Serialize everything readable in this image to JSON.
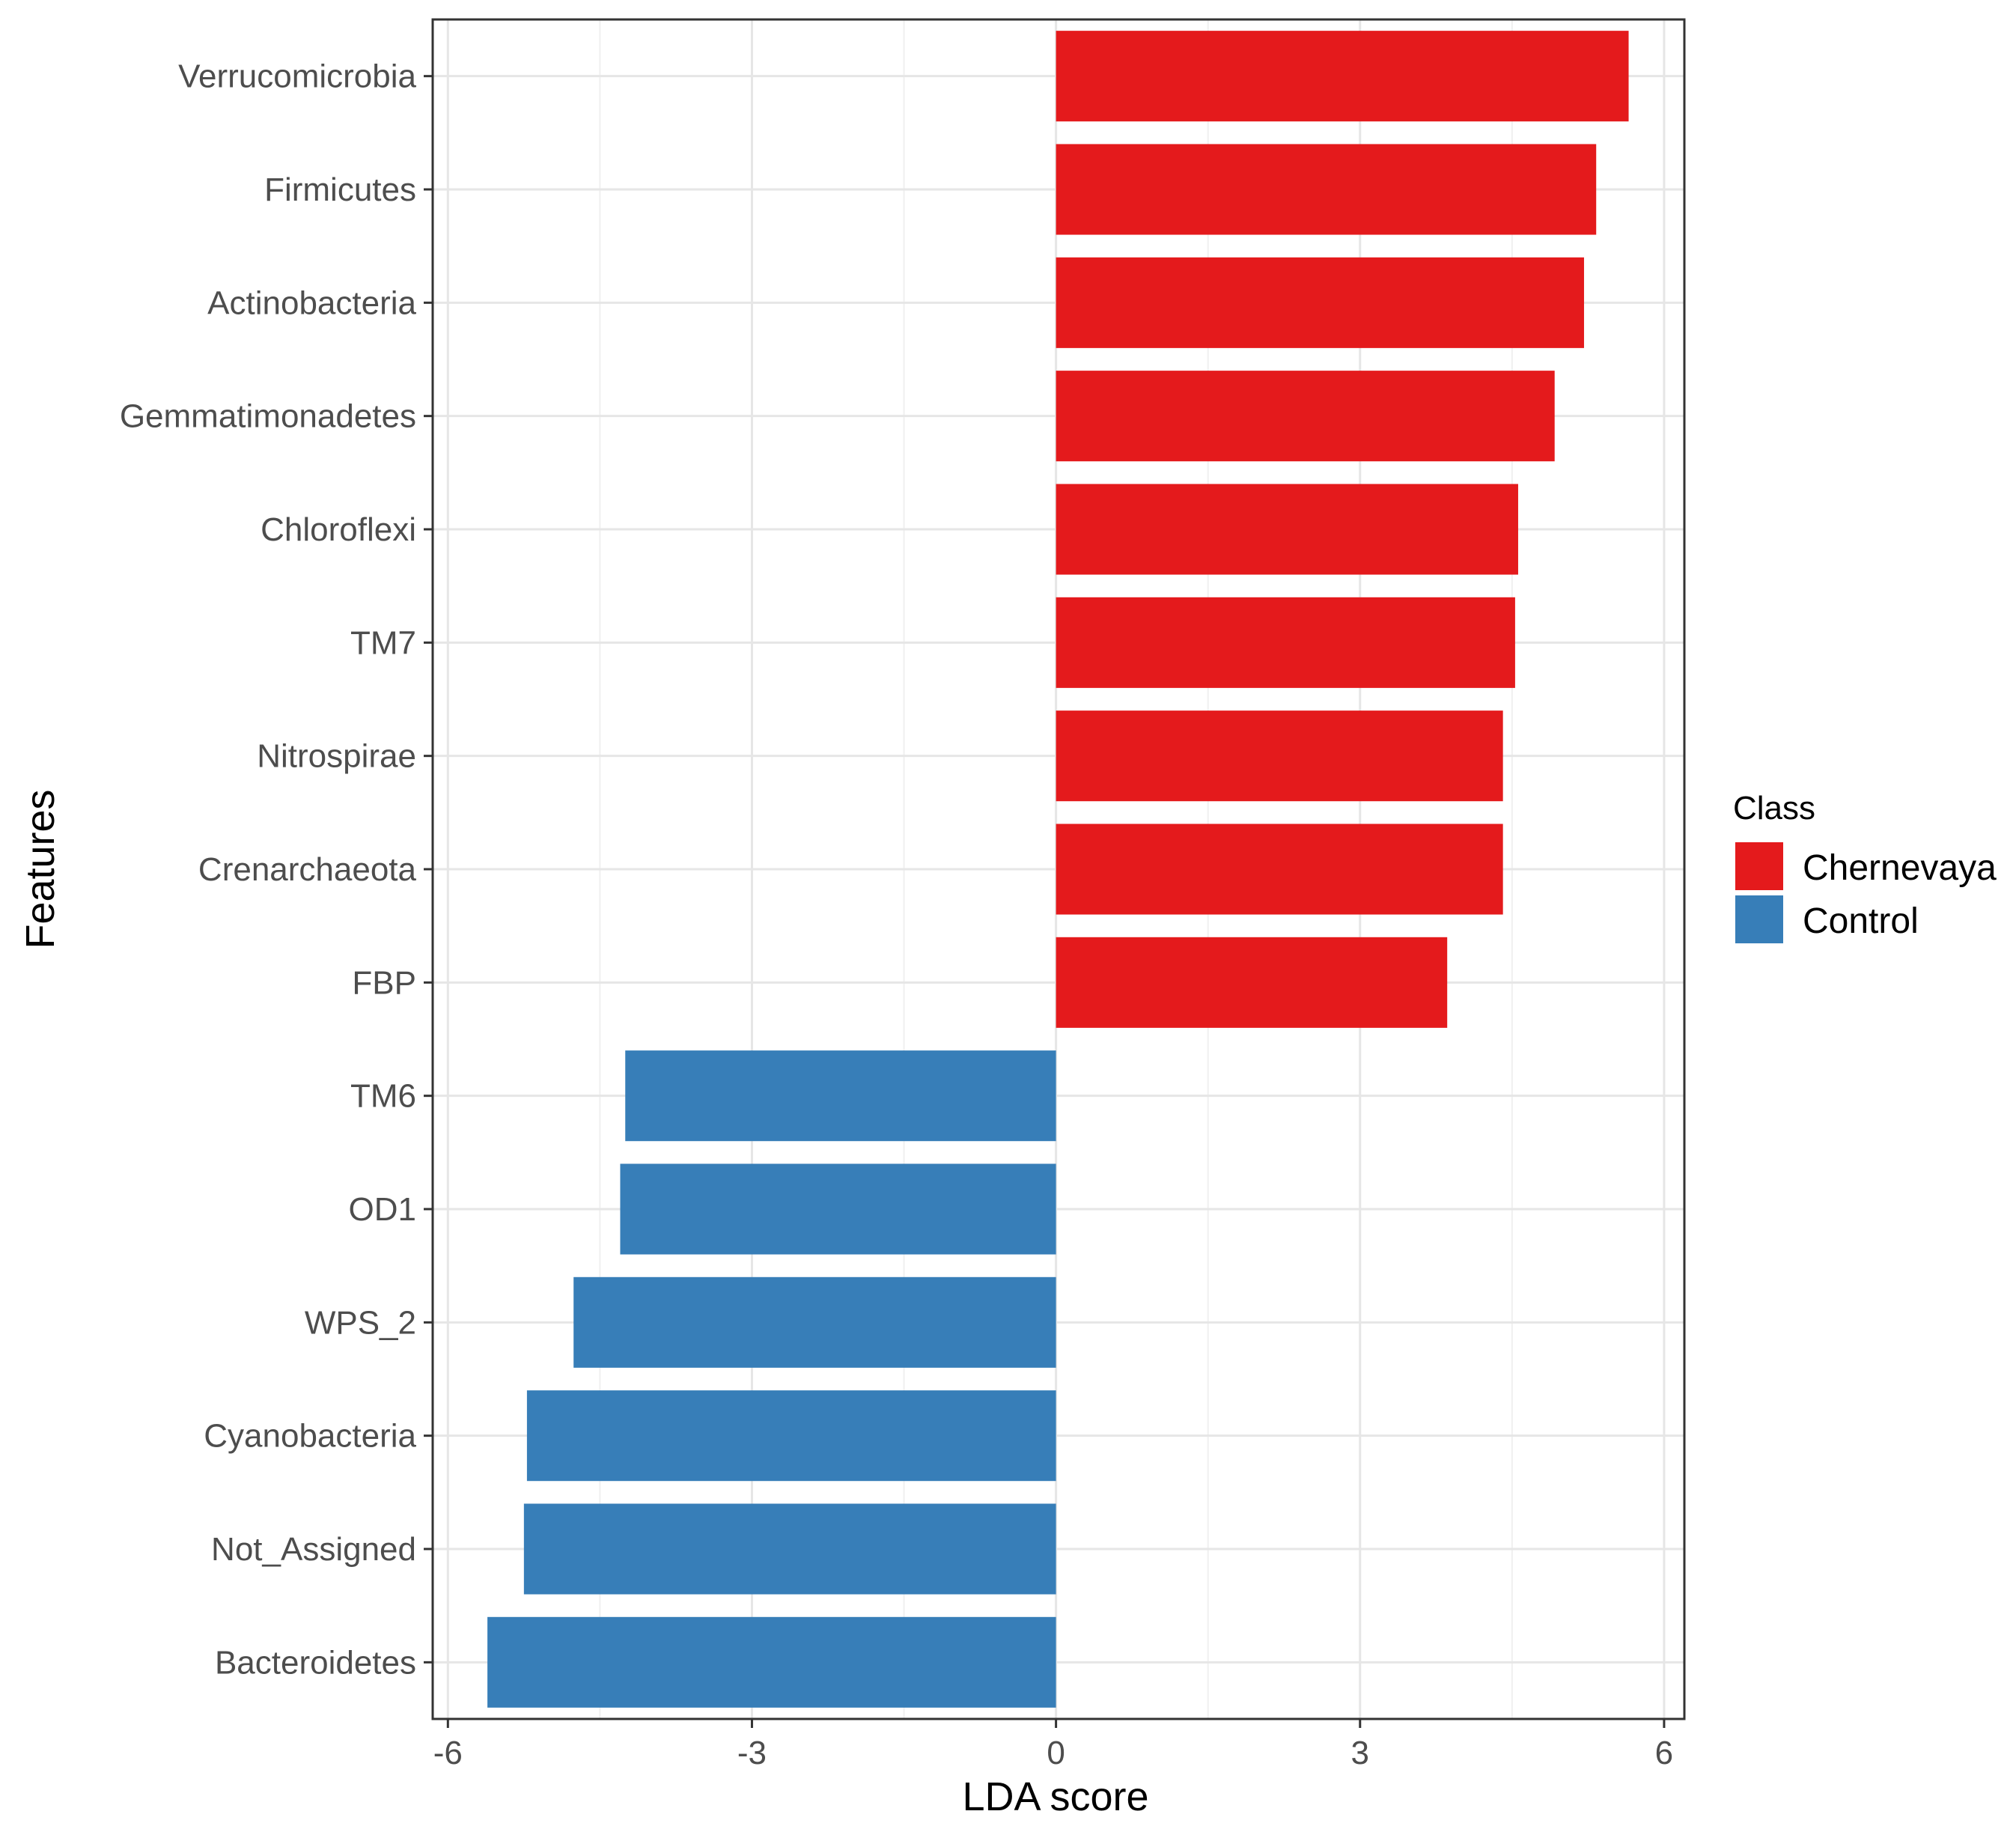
{
  "chart_data": {
    "type": "bar",
    "orientation": "horizontal",
    "title": "",
    "xlabel": "LDA score",
    "ylabel": "Features",
    "xlim": [
      -6.15,
      6.2
    ],
    "xticks": [
      -6,
      -3,
      0,
      3,
      6
    ],
    "xtick_labels": [
      "-6",
      "-3",
      "0",
      "3",
      "6"
    ],
    "grid": true,
    "categories": [
      "Verrucomicrobia",
      "Firmicutes",
      "Actinobacteria",
      "Gemmatimonadetes",
      "Chloroflexi",
      "TM7",
      "Nitrospirae",
      "Crenarchaeota",
      "FBP",
      "TM6",
      "OD1",
      "WPS_2",
      "Cyanobacteria",
      "Not_Assigned",
      "Bacteroidetes"
    ],
    "values": [
      5.65,
      5.33,
      5.21,
      4.92,
      4.56,
      4.53,
      4.41,
      4.41,
      3.86,
      -4.25,
      -4.3,
      -4.76,
      -5.22,
      -5.25,
      -5.61
    ],
    "classes": [
      "Chernevaya",
      "Chernevaya",
      "Chernevaya",
      "Chernevaya",
      "Chernevaya",
      "Chernevaya",
      "Chernevaya",
      "Chernevaya",
      "Chernevaya",
      "Control",
      "Control",
      "Control",
      "Control",
      "Control",
      "Control"
    ],
    "legend": {
      "title": "Class",
      "position": "right",
      "entries": [
        {
          "label": "Chernevaya",
          "color": "#e41a1c"
        },
        {
          "label": "Control",
          "color": "#377eb8"
        }
      ]
    }
  }
}
